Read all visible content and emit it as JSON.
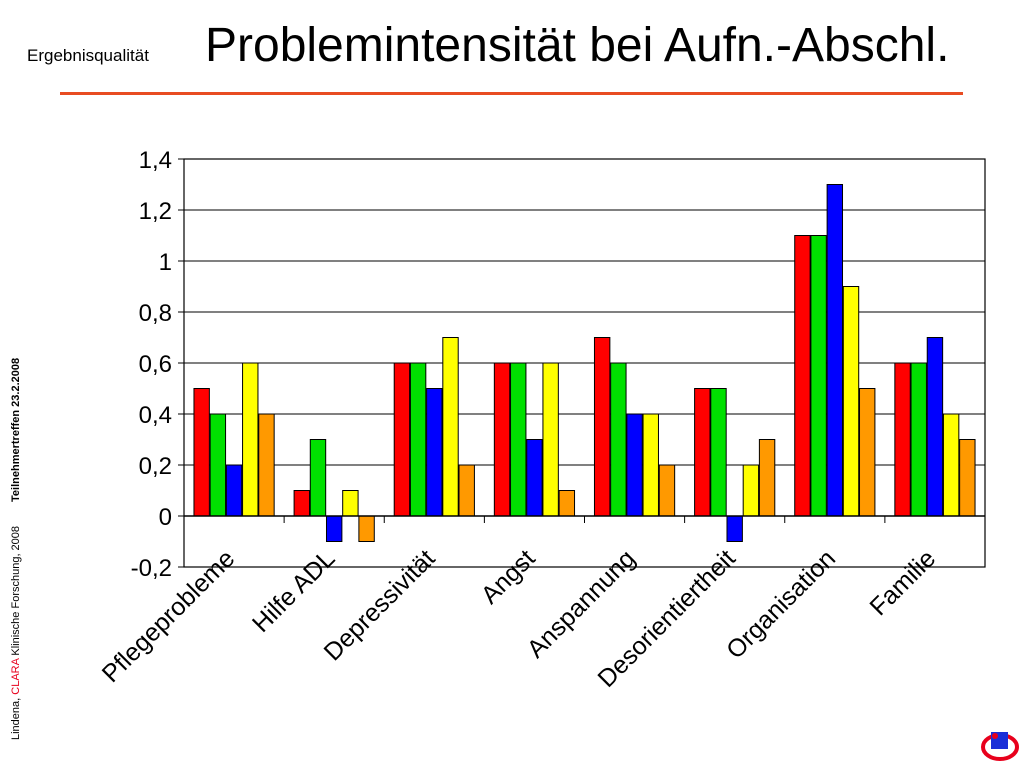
{
  "header": {
    "section_label": "Ergebnisqualität",
    "title": "Problemintensität bei Aufn.-Abschl."
  },
  "footer": {
    "credit_prefix": "Lindena, ",
    "credit_brand": "CLARA",
    "credit_suffix": " Klinische Forschung, 2008",
    "event": "Teilnehmertreffen 23.2.2008"
  },
  "colors": {
    "accent_rule": "#e84c22",
    "series": [
      "#ff0000",
      "#00e000",
      "#0000ff",
      "#ffff00",
      "#ff9900"
    ]
  },
  "logo": {
    "icon": "clara-logo-icon"
  },
  "chart_data": {
    "type": "bar",
    "title": "",
    "xlabel": "",
    "ylabel": "",
    "ylim": [
      -0.2,
      1.4
    ],
    "yticks": [
      "1,4",
      "1,2",
      "1",
      "0,8",
      "0,6",
      "0,4",
      "0,2",
      "0",
      "-0,2"
    ],
    "grid": true,
    "legend": "none",
    "categories": [
      "Pflegeprobleme",
      "Hilfe ADL",
      "Depressivität",
      "Angst",
      "Anspannung",
      "Desorientiertheit",
      "Organisation",
      "Familie"
    ],
    "series": [
      {
        "values": [
          0.5,
          0.1,
          0.6,
          0.6,
          0.7,
          0.5,
          1.1,
          0.6
        ]
      },
      {
        "values": [
          0.4,
          0.3,
          0.6,
          0.6,
          0.6,
          0.5,
          1.1,
          0.6
        ]
      },
      {
        "values": [
          0.2,
          -0.1,
          0.5,
          0.3,
          0.4,
          -0.1,
          1.3,
          0.7
        ]
      },
      {
        "values": [
          0.6,
          0.1,
          0.7,
          0.6,
          0.4,
          0.2,
          0.9,
          0.4
        ]
      },
      {
        "values": [
          0.4,
          -0.1,
          0.2,
          0.1,
          0.2,
          0.3,
          0.5,
          0.3
        ]
      }
    ]
  }
}
